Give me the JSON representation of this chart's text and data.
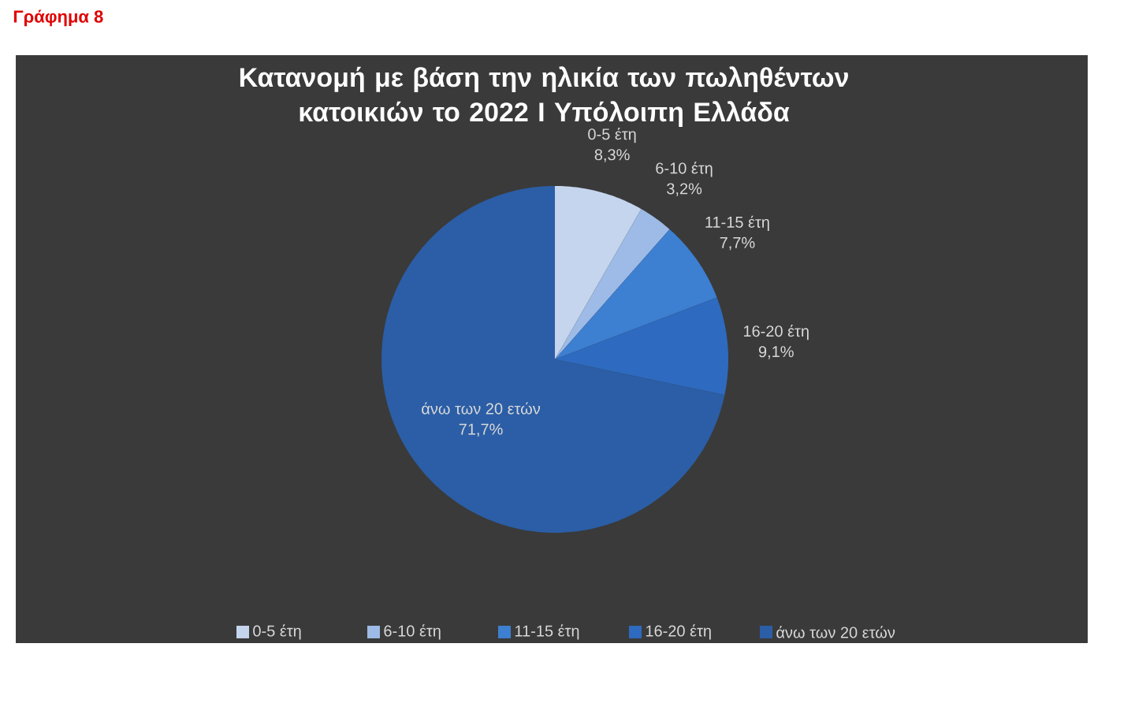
{
  "chart_data": {
    "type": "pie",
    "title": "Κατανομή με βάση την ηλικία των πωληθέντων κατοικιών το 2022 Ι Υπόλοιπη Ελλάδα",
    "categories": [
      "0-5 έτη",
      "6-10 έτη",
      "11-15 έτη",
      "16-20 έτη",
      "άνω των 20 ετών"
    ],
    "values": [
      8.3,
      3.2,
      7.7,
      9.1,
      71.7
    ],
    "value_labels": [
      "8,3%",
      "3,2%",
      "7,7%",
      "9,1%",
      "71,7%"
    ],
    "colors": [
      "#c5d5ee",
      "#9dbbe6",
      "#3d7fd1",
      "#2e6abf",
      "#2b5ea6"
    ],
    "legend": "bottom",
    "annotations": [
      "Γράφημα 8"
    ]
  }
}
